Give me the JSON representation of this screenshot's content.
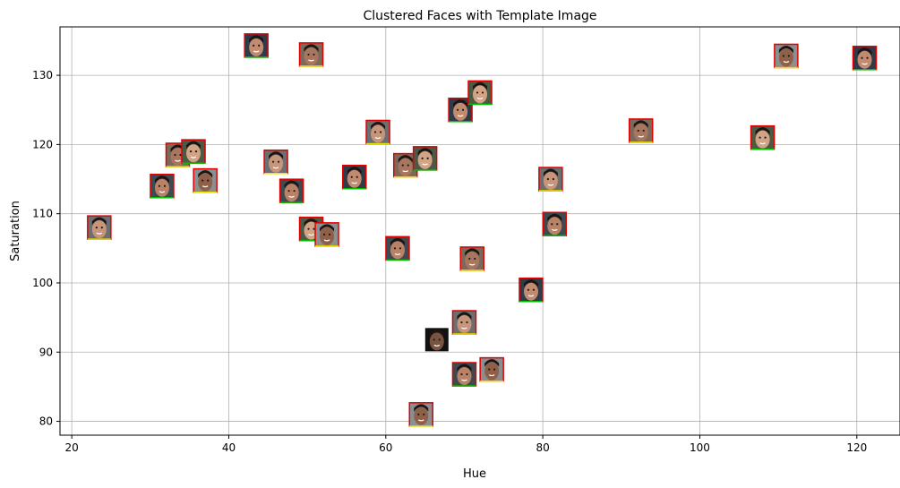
{
  "chart_data": {
    "type": "scatter",
    "title": "Clustered Faces with Template Image",
    "xlabel": "Hue",
    "ylabel": "Saturation",
    "xlim": [
      18.5,
      125.5
    ],
    "ylim": [
      78,
      137
    ],
    "xticks": [
      20,
      40,
      60,
      80,
      100,
      120
    ],
    "yticks": [
      80,
      90,
      100,
      110,
      120,
      130
    ],
    "grid": true,
    "marker": "face-thumbnail",
    "template_point": {
      "x": 66.5,
      "y": 91.8
    },
    "points": [
      {
        "x": 23.5,
        "y": 108.0
      },
      {
        "x": 31.5,
        "y": 114.0
      },
      {
        "x": 33.5,
        "y": 118.5
      },
      {
        "x": 35.5,
        "y": 119.0
      },
      {
        "x": 37.0,
        "y": 114.8
      },
      {
        "x": 43.5,
        "y": 134.3
      },
      {
        "x": 46.0,
        "y": 117.5
      },
      {
        "x": 48.0,
        "y": 113.3
      },
      {
        "x": 50.5,
        "y": 133.0
      },
      {
        "x": 50.5,
        "y": 107.8
      },
      {
        "x": 52.5,
        "y": 107.0
      },
      {
        "x": 56.0,
        "y": 115.3
      },
      {
        "x": 59.0,
        "y": 121.8
      },
      {
        "x": 61.5,
        "y": 105.0
      },
      {
        "x": 62.5,
        "y": 117.0
      },
      {
        "x": 65.0,
        "y": 118.0
      },
      {
        "x": 64.5,
        "y": 81.0
      },
      {
        "x": 69.5,
        "y": 125.0
      },
      {
        "x": 70.0,
        "y": 94.3
      },
      {
        "x": 70.0,
        "y": 86.8
      },
      {
        "x": 71.0,
        "y": 103.5
      },
      {
        "x": 72.0,
        "y": 127.5
      },
      {
        "x": 73.5,
        "y": 87.5
      },
      {
        "x": 78.5,
        "y": 99.0
      },
      {
        "x": 81.0,
        "y": 115.0
      },
      {
        "x": 81.5,
        "y": 108.5
      },
      {
        "x": 92.5,
        "y": 122.0
      },
      {
        "x": 108.0,
        "y": 121.0
      },
      {
        "x": 111.0,
        "y": 132.8
      },
      {
        "x": 121.0,
        "y": 132.5
      }
    ]
  }
}
